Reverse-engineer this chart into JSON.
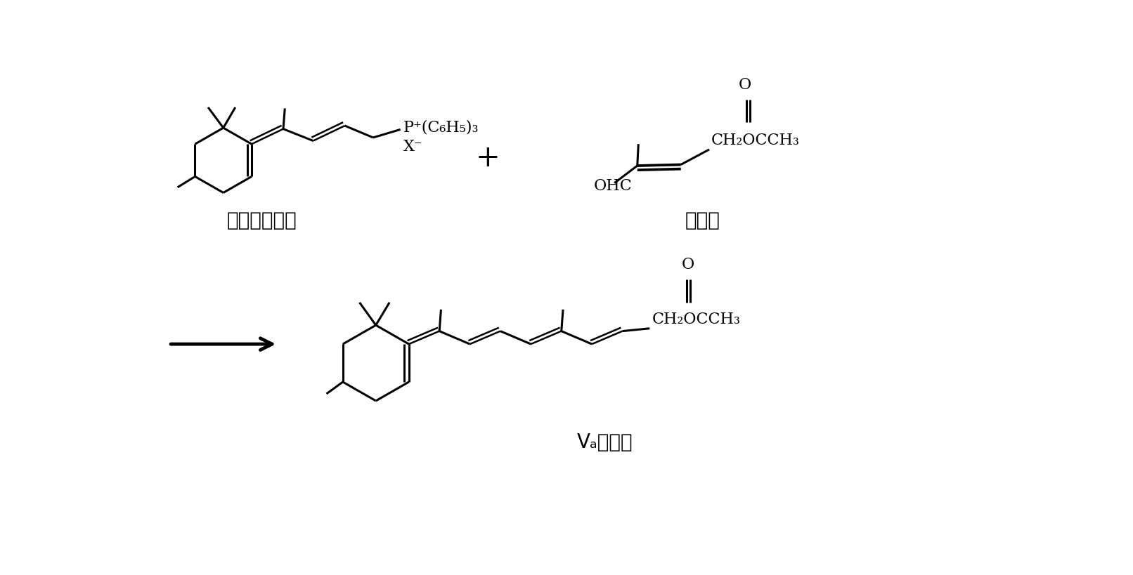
{
  "bg_color": "#ffffff",
  "line_color": "#000000",
  "lw": 1.8,
  "lw2": 2.2,
  "label1": "十五碳中间体",
  "label2": "五碳醒",
  "label3": "Vₐ乙酸酯",
  "phosphonium": "P⁺(C₆H₅)₃",
  "xminus": "X⁻",
  "ch2occh3": "CH₂OCCH₃",
  "ohc": "OHC",
  "plus": "+",
  "o_text": "O",
  "fontsize_label": 20,
  "fontsize_chem": 14,
  "fontsize_plus": 30,
  "figsize": [
    16.12,
    8.2
  ],
  "dpi": 100
}
